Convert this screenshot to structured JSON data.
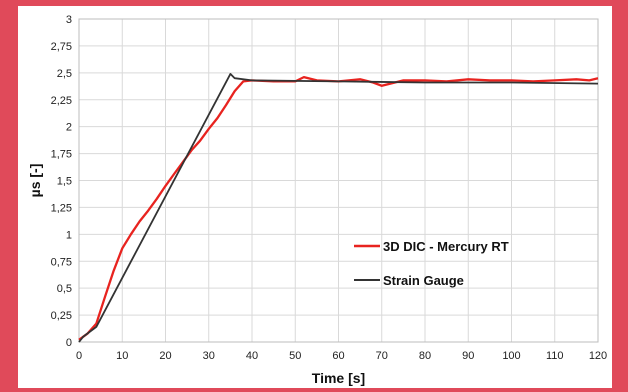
{
  "chart_data": {
    "type": "line",
    "title": "",
    "xlabel": "Time [s]",
    "ylabel": "µs [-]",
    "xlim": [
      0,
      120
    ],
    "ylim": [
      0,
      3
    ],
    "xticks": [
      "0",
      "10",
      "20",
      "30",
      "40",
      "50",
      "60",
      "70",
      "80",
      "90",
      "100",
      "110",
      "120"
    ],
    "yticks": [
      "0",
      "0,25",
      "0,5",
      "0,75",
      "1",
      "1,25",
      "1,5",
      "1,75",
      "2",
      "2,25",
      "2,5",
      "2,75",
      "3"
    ],
    "grid": true,
    "legend_position": "right",
    "series": [
      {
        "name": "3D DIC - Mercury RT",
        "color": "#e8231f",
        "x": [
          0,
          2,
          4,
          6,
          8,
          10,
          12,
          14,
          16,
          18,
          20,
          22,
          24,
          26,
          28,
          30,
          32,
          34,
          36,
          38,
          40,
          45,
          50,
          52,
          55,
          60,
          65,
          68,
          70,
          72,
          75,
          80,
          85,
          90,
          95,
          100,
          105,
          110,
          115,
          118,
          120
        ],
        "y": [
          0.02,
          0.08,
          0.17,
          0.42,
          0.66,
          0.87,
          1.0,
          1.12,
          1.22,
          1.33,
          1.45,
          1.56,
          1.67,
          1.78,
          1.87,
          1.98,
          2.08,
          2.2,
          2.33,
          2.42,
          2.43,
          2.42,
          2.42,
          2.46,
          2.43,
          2.42,
          2.44,
          2.41,
          2.38,
          2.4,
          2.43,
          2.43,
          2.42,
          2.44,
          2.43,
          2.43,
          2.42,
          2.43,
          2.44,
          2.43,
          2.45
        ]
      },
      {
        "name": "Strain Gauge",
        "color": "#333333",
        "x": [
          0,
          1,
          4,
          35,
          36,
          40,
          60,
          80,
          100,
          120
        ],
        "y": [
          0.0,
          0.05,
          0.14,
          2.49,
          2.45,
          2.43,
          2.42,
          2.41,
          2.41,
          2.4
        ]
      }
    ]
  }
}
